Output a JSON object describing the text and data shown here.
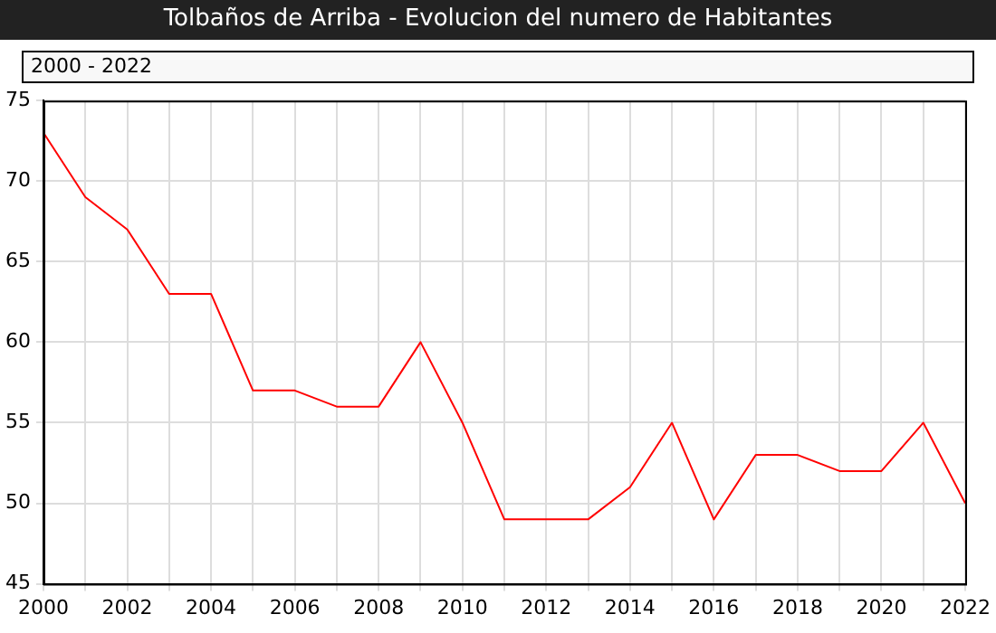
{
  "chart_data": {
    "type": "line",
    "title": "Tolbaños de Arriba - Evolucion del numero de Habitantes",
    "annotations": [
      "2000 - 2022"
    ],
    "x": [
      2000,
      2001,
      2002,
      2003,
      2004,
      2005,
      2006,
      2007,
      2008,
      2009,
      2010,
      2011,
      2012,
      2013,
      2014,
      2015,
      2016,
      2017,
      2018,
      2019,
      2020,
      2021,
      2022
    ],
    "series": [
      {
        "color": "#ff0000",
        "values": [
          73,
          69,
          67,
          63,
          63,
          57,
          57,
          56,
          56,
          60,
          55,
          49,
          49,
          49,
          51,
          55,
          49,
          53,
          53,
          52,
          52,
          55,
          50
        ]
      }
    ],
    "xlim": [
      2000,
      2022
    ],
    "xticks": [
      2000,
      {
        "value": 2001,
        "label": null
      },
      2002,
      {
        "value": 2003,
        "label": null
      },
      2004,
      {
        "value": 2005,
        "label": null
      },
      2006,
      {
        "value": 2007,
        "label": null
      },
      2008,
      {
        "value": 2009,
        "label": null
      },
      2010,
      {
        "value": 2011,
        "label": null
      },
      2012,
      {
        "value": 2013,
        "label": null
      },
      2014,
      {
        "value": 2015,
        "label": null
      },
      2016,
      {
        "value": 2017,
        "label": null
      },
      2018,
      {
        "value": 2019,
        "label": null
      },
      2020,
      {
        "value": 2021,
        "label": null
      },
      2022
    ],
    "ylim": [
      45,
      75
    ],
    "yticks": [
      45,
      50,
      55,
      60,
      65,
      70,
      75
    ],
    "grid": true
  }
}
